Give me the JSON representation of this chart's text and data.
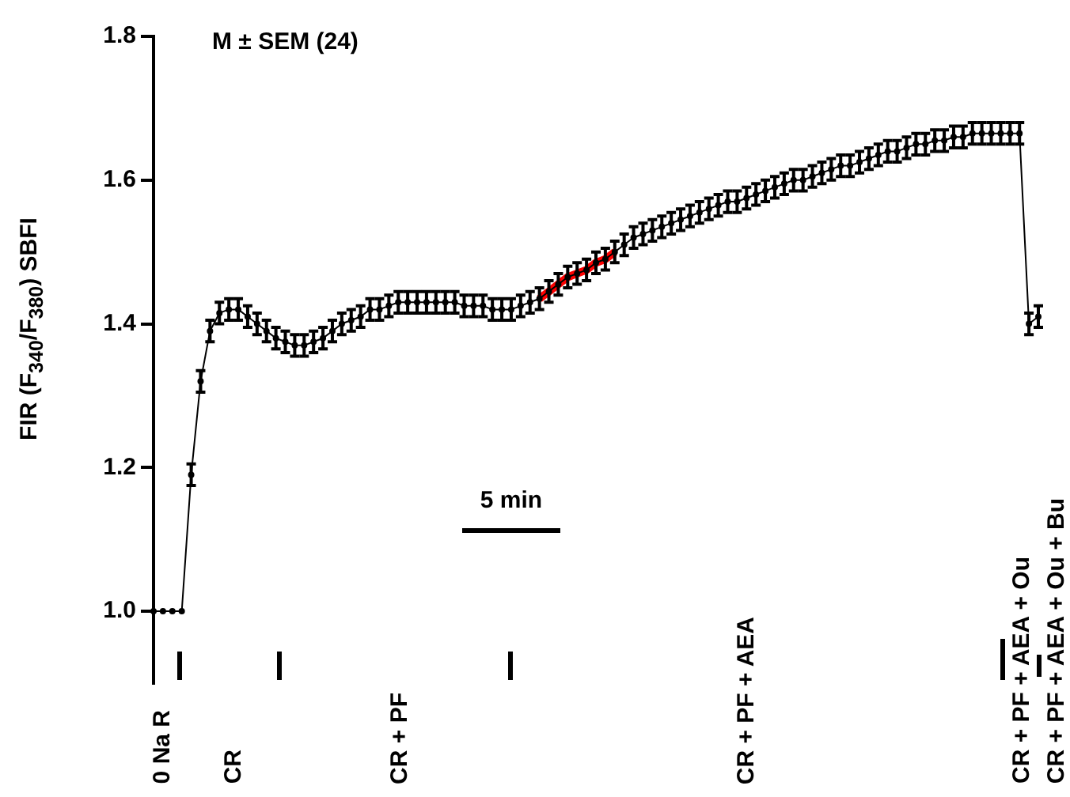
{
  "chart_data": {
    "type": "line",
    "ylabel": "FIR (F$_{340}$/F$_{380}$) SBFI",
    "categories": [
      null,
      null,
      null,
      null,
      null,
      null,
      null,
      null,
      null,
      null,
      null,
      null,
      null,
      null,
      null,
      null,
      null,
      null,
      null,
      null,
      null,
      null,
      null,
      null,
      null,
      null,
      null,
      null,
      null,
      null,
      null,
      null,
      null,
      null,
      null,
      null,
      null,
      null,
      null,
      null,
      null,
      null,
      null,
      null,
      null,
      null,
      null,
      null,
      null,
      null,
      null,
      null,
      null,
      null,
      null,
      null,
      null,
      null,
      null,
      null,
      null,
      null,
      null,
      null,
      null,
      null,
      null,
      null,
      null,
      null,
      null,
      null,
      null,
      null,
      null,
      null,
      null,
      null,
      null,
      null,
      null,
      null,
      null,
      null,
      null,
      null,
      null,
      null,
      null,
      null,
      null,
      null,
      null,
      null,
      null
    ],
    "series": [
      {
        "color": "#000000",
        "marker": "circle",
        "values": [
          1.0,
          1.0,
          1.0,
          1.0,
          1.19,
          1.32,
          1.39,
          1.415,
          1.42,
          1.42,
          1.41,
          1.4,
          1.39,
          1.38,
          1.375,
          1.37,
          1.37,
          1.375,
          1.38,
          1.39,
          1.4,
          1.405,
          1.41,
          1.42,
          1.42,
          1.425,
          1.43,
          1.43,
          1.43,
          1.43,
          1.43,
          1.43,
          1.43,
          1.425,
          1.425,
          1.425,
          1.42,
          1.42,
          1.42,
          1.425,
          1.43,
          1.435,
          1.445,
          1.455,
          1.465,
          1.47,
          1.475,
          1.485,
          1.49,
          1.5,
          1.51,
          1.52,
          1.525,
          1.53,
          1.535,
          1.54,
          1.545,
          1.55,
          1.555,
          1.56,
          1.565,
          1.57,
          1.57,
          1.575,
          1.58,
          1.585,
          1.59,
          1.595,
          1.6,
          1.6,
          1.605,
          1.61,
          1.615,
          1.62,
          1.62,
          1.625,
          1.63,
          1.635,
          1.64,
          1.64,
          1.645,
          1.65,
          1.65,
          1.655,
          1.655,
          1.66,
          1.66,
          1.665,
          1.665,
          1.665,
          1.665,
          1.665,
          1.665,
          1.4,
          1.41
        ],
        "errors": [
          null,
          null,
          null,
          null,
          0.015,
          0.015,
          0.015,
          0.015,
          0.015,
          0.015,
          0.015,
          0.015,
          0.015,
          0.015,
          0.015,
          0.015,
          0.015,
          0.015,
          0.015,
          0.015,
          0.015,
          0.015,
          0.015,
          0.015,
          0.015,
          0.015,
          0.015,
          0.015,
          0.015,
          0.015,
          0.015,
          0.015,
          0.015,
          0.015,
          0.015,
          0.015,
          0.015,
          0.015,
          0.015,
          0.015,
          0.015,
          0.015,
          0.015,
          0.015,
          0.015,
          0.015,
          0.015,
          0.015,
          0.015,
          0.015,
          0.015,
          0.015,
          0.015,
          0.015,
          0.015,
          0.015,
          0.015,
          0.015,
          0.015,
          0.015,
          0.015,
          0.015,
          0.015,
          0.015,
          0.015,
          0.015,
          0.015,
          0.015,
          0.015,
          0.015,
          0.015,
          0.015,
          0.015,
          0.015,
          0.015,
          0.015,
          0.015,
          0.015,
          0.015,
          0.015,
          0.015,
          0.015,
          0.015,
          0.015,
          0.015,
          0.015,
          0.015,
          0.015,
          0.015,
          0.015,
          0.015,
          0.015,
          0.015,
          0.015,
          0.015
        ]
      },
      {
        "color": "#ff0000",
        "marker": "none",
        "values": [
          null,
          null,
          null,
          null,
          null,
          null,
          null,
          null,
          null,
          null,
          null,
          null,
          null,
          null,
          null,
          null,
          null,
          null,
          null,
          null,
          null,
          null,
          null,
          null,
          null,
          null,
          null,
          null,
          null,
          null,
          null,
          null,
          null,
          null,
          null,
          null,
          null,
          null,
          null,
          null,
          null,
          1.435,
          1.445,
          1.455,
          1.465,
          1.47,
          1.475,
          1.485,
          1.49,
          1.5,
          null,
          null,
          null,
          null,
          null,
          null,
          null,
          null,
          null,
          null,
          null,
          null,
          null,
          null,
          null,
          null,
          null,
          null,
          null,
          null,
          null,
          null,
          null,
          null,
          null,
          null,
          null,
          null,
          null,
          null,
          null,
          null,
          null,
          null,
          null,
          null,
          null,
          null,
          null,
          null,
          null,
          null,
          null,
          null,
          null
        ]
      }
    ],
    "ylim": [
      0.9,
      1.8
    ],
    "yticks": [
      {
        "value": 1,
        "label": "1.0"
      },
      {
        "value": 1.2,
        "label": "1.2"
      },
      {
        "value": 1.4,
        "label": "1.4"
      },
      {
        "value": 1.6,
        "label": "1.6"
      },
      {
        "value": 1.8,
        "label": "1.8"
      }
    ],
    "tick_labels": "y",
    "grid": false,
    "legend": false,
    "annotations": [
      "M ± SEM (24)",
      "5 min",
      "0 Na R",
      "CR",
      "CR + PF",
      "CR + PF + AEA",
      "CR + PF + AEA + Ou",
      "CR + PF + AEA + Ou + Bu"
    ]
  }
}
